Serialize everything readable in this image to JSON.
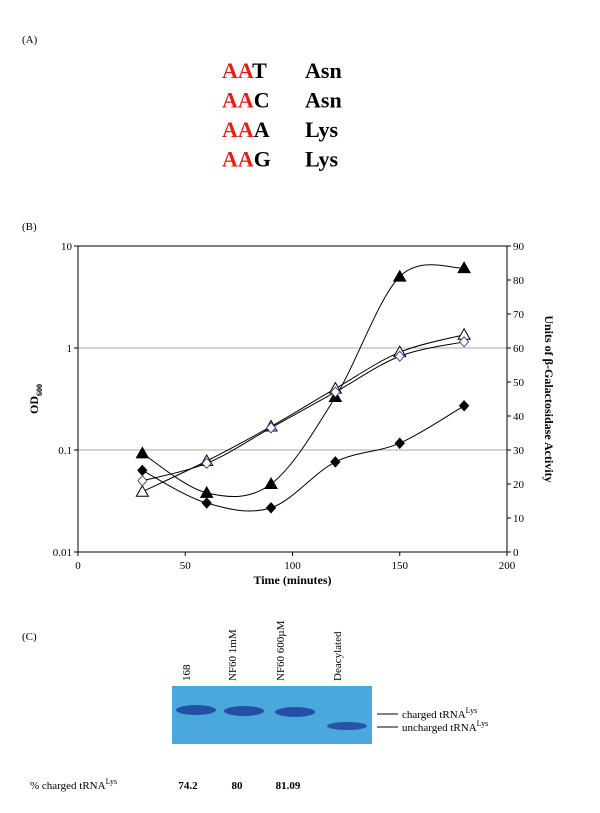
{
  "panel_a": {
    "label": "(A)",
    "rows": [
      {
        "prefix": "AA",
        "suffix": "T",
        "amino": "Asn"
      },
      {
        "prefix": "AA",
        "suffix": "C",
        "amino": "Asn"
      },
      {
        "prefix": "AA",
        "suffix": "A",
        "amino": "Lys"
      },
      {
        "prefix": "AA",
        "suffix": "G",
        "amino": "Lys"
      }
    ]
  },
  "chart_data": {
    "type": "line",
    "panel_label": "(B)",
    "xlabel": "Time (minutes)",
    "ylabel": "OD",
    "ylabel_sub": "600",
    "y2label": "Units of β-Galactosidase Activity",
    "x": [
      30,
      60,
      90,
      120,
      150,
      180
    ],
    "xlim": [
      0,
      200
    ],
    "xticks": [
      0,
      50,
      100,
      150,
      200
    ],
    "ylim": [
      0.01,
      10
    ],
    "yticks": [
      0.01,
      0.1,
      1,
      10
    ],
    "ylog": true,
    "y2lim": [
      0,
      90
    ],
    "y2ticks": [
      0,
      10,
      20,
      30,
      40,
      50,
      60,
      70,
      80,
      90
    ],
    "grid": true,
    "series": [
      {
        "marker": "triangle",
        "filled": true,
        "color": "#000000",
        "axis": "y2",
        "values": [
          29,
          17.4,
          20,
          45.6,
          81,
          83.5
        ]
      },
      {
        "marker": "diamond",
        "filled": true,
        "color": "#000000",
        "axis": "y2",
        "values": [
          24,
          14.4,
          13,
          26.5,
          32,
          43
        ]
      },
      {
        "marker": "triangle",
        "filled": false,
        "color": "#000000",
        "values": [
          0.039,
          0.078,
          0.17,
          0.4,
          0.91,
          1.35
        ]
      },
      {
        "marker": "diamond",
        "filled": false,
        "color": "#4a4aa0",
        "values": [
          0.05,
          0.074,
          0.165,
          0.37,
          0.83,
          1.15
        ]
      }
    ]
  },
  "panel_c": {
    "label": "(C)",
    "lanes": [
      "168",
      "NF60 1mM",
      "NF60 600µM",
      "Deacylated"
    ],
    "bands": [
      {
        "text": "charged tRNA",
        "sup": "Lys"
      },
      {
        "text": "uncharged tRNA",
        "sup": "Lys"
      }
    ],
    "row_label": {
      "text": "% charged tRNA",
      "sup": "Lys"
    },
    "percentages": [
      74.2,
      80,
      81.09
    ]
  }
}
